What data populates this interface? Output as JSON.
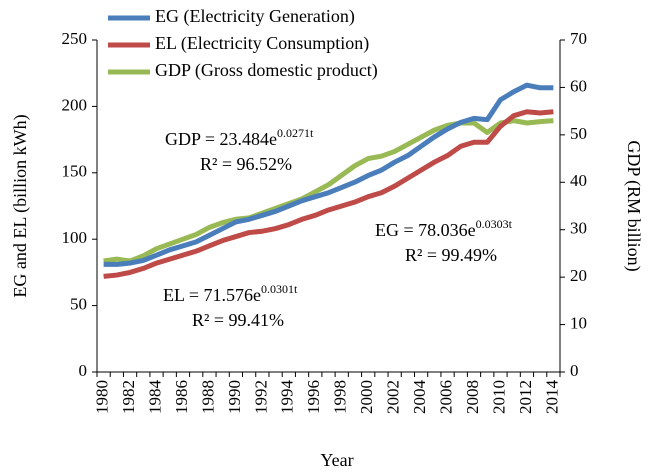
{
  "chart_data": {
    "type": "line",
    "x_label": "Year",
    "y_label": "EG and EL (billion kWh)",
    "y2_label": "GDP (RM billion)",
    "categories": [
      "1980",
      null,
      "1982",
      null,
      "1984",
      null,
      "1986",
      null,
      "1988",
      null,
      "1990",
      null,
      "1992",
      null,
      "1994",
      null,
      "1996",
      null,
      "1998",
      null,
      "2000",
      null,
      "2002",
      null,
      "2004",
      null,
      "2006",
      null,
      "2008",
      null,
      "2010",
      null,
      "2012",
      null,
      "2014"
    ],
    "ylim": [
      0,
      250
    ],
    "yticks": [
      0,
      50,
      100,
      150,
      200,
      250
    ],
    "y2lim": [
      0,
      70
    ],
    "y2ticks": [
      0,
      10,
      20,
      30,
      40,
      50,
      60,
      70
    ],
    "series": [
      {
        "name": "EG (Electricity Generation)",
        "color": "#4a7ebb",
        "values": [
          81,
          81,
          82,
          84,
          88,
          92,
          95,
          98,
          103,
          108,
          113,
          115,
          118,
          121,
          125,
          129,
          132,
          135,
          139,
          143,
          148,
          152,
          158,
          163,
          170,
          177,
          183,
          188,
          191,
          190,
          205,
          211,
          216,
          214,
          214
        ]
      },
      {
        "name": "EL (Electricity Consumption)",
        "color": "#be4b48",
        "values": [
          72,
          73,
          75,
          78,
          82,
          85,
          88,
          91,
          95,
          99,
          102,
          105,
          106,
          108,
          111,
          115,
          118,
          122,
          125,
          128,
          132,
          135,
          140,
          146,
          152,
          158,
          163,
          170,
          173,
          173,
          185,
          193,
          196,
          195,
          196
        ]
      },
      {
        "name": "GDP (Gross domestic product)",
        "color": "#98b954",
        "axis": "y2",
        "values": [
          23.4,
          23.8,
          23.4,
          24.5,
          26,
          27,
          28,
          29,
          30.5,
          31.5,
          32.2,
          32.5,
          33.5,
          34.5,
          35.5,
          36.5,
          38,
          39.5,
          41.5,
          43.5,
          45,
          45.5,
          46.5,
          48,
          49.5,
          51,
          52,
          52.5,
          52.5,
          50.5,
          52.5,
          53,
          52.5,
          52.8,
          53
        ]
      }
    ],
    "annotations": [
      {
        "text": "GDP = 23.484e",
        "sup": "0.0271t",
        "r2": "R² = 96.52%"
      },
      {
        "text": "EG = 78.036e",
        "sup": "0.0303t",
        "r2": "R² = 99.49%"
      },
      {
        "text": "EL = 71.576e",
        "sup": "0.0301t",
        "r2": "R² = 99.41%"
      }
    ]
  }
}
